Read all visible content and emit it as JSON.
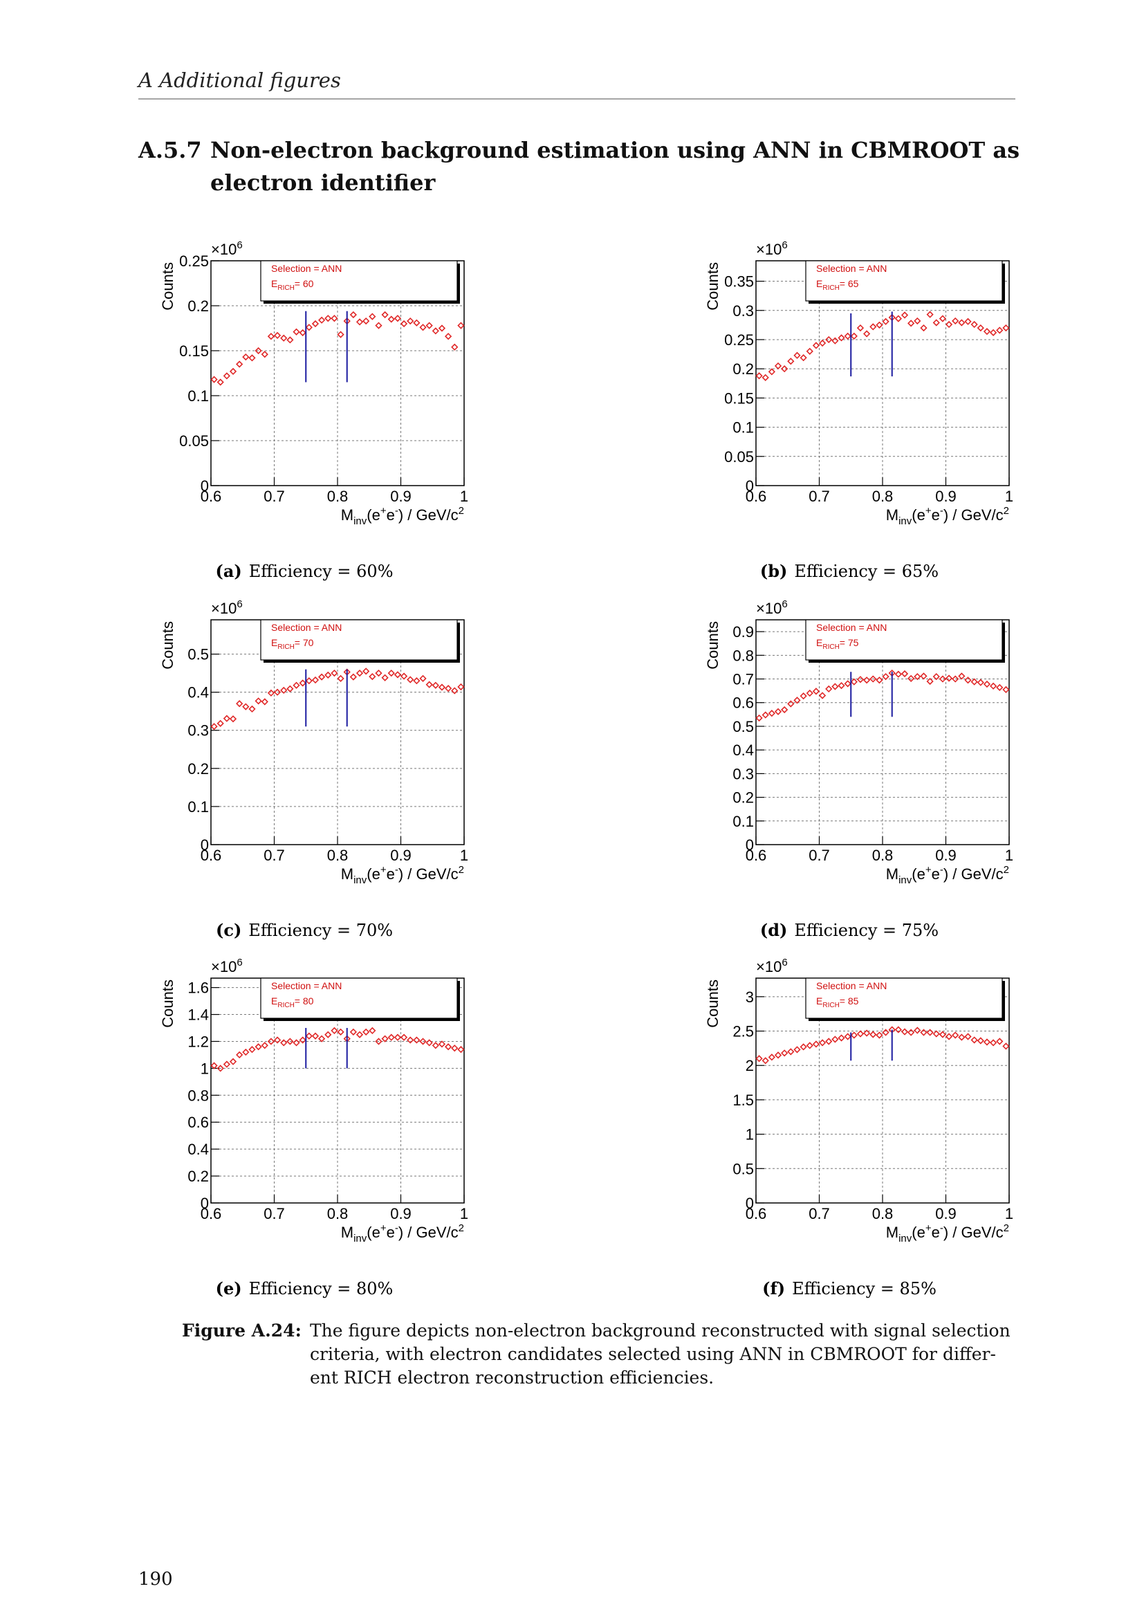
{
  "header": "A Additional figures",
  "section": {
    "number": "A.5.7",
    "lines": [
      "Non-electron background estimation using ANN in CBMROOT as",
      "electron identifier"
    ]
  },
  "chart_data": [
    {
      "type": "scatter",
      "label": "(a)",
      "caption": "Efficiency = 60%",
      "ylabel": "Counts",
      "y_multiplier": {
        "base": "×10",
        "exp": "6"
      },
      "xlabel_parts": [
        {
          "text": "M",
          "shift": "none"
        },
        {
          "text": "inv",
          "shift": "sub"
        },
        {
          "text": "(e",
          "shift": "none"
        },
        {
          "text": "+",
          "shift": "super"
        },
        {
          "text": "e",
          "shift": "none"
        },
        {
          "text": "-",
          "shift": "super"
        },
        {
          "text": ") / GeV/c",
          "shift": "none"
        },
        {
          "text": "2",
          "shift": "super"
        }
      ],
      "legend": {
        "selection": "Selection = ANN",
        "e": "E",
        "e_sub": "RICH",
        "e_value": "= 60"
      },
      "x": [
        0.605,
        0.615,
        0.625,
        0.635,
        0.645,
        0.655,
        0.665,
        0.675,
        0.685,
        0.695,
        0.705,
        0.715,
        0.725,
        0.735,
        0.745,
        0.755,
        0.765,
        0.775,
        0.785,
        0.795,
        0.805,
        0.815,
        0.825,
        0.835,
        0.845,
        0.855,
        0.865,
        0.875,
        0.885,
        0.895,
        0.905,
        0.915,
        0.925,
        0.935,
        0.945,
        0.955,
        0.965,
        0.975,
        0.985,
        0.995
      ],
      "series": [
        {
          "color": "#e02828",
          "values": [
            0.118,
            0.115,
            0.122,
            0.127,
            0.135,
            0.143,
            0.142,
            0.15,
            0.146,
            0.166,
            0.167,
            0.164,
            0.162,
            0.171,
            0.17,
            0.176,
            0.18,
            0.184,
            0.186,
            0.186,
            0.168,
            0.183,
            0.19,
            0.182,
            0.183,
            0.188,
            0.178,
            0.19,
            0.185,
            0.186,
            0.18,
            0.183,
            0.181,
            0.176,
            0.178,
            0.172,
            0.175,
            0.166,
            0.154,
            0.178
          ]
        }
      ],
      "vlines": [
        {
          "x": 0.75,
          "ymin": 0.115,
          "ymax": 0.194
        },
        {
          "x": 0.815,
          "ymin": 0.115,
          "ymax": 0.194
        }
      ],
      "vline_color": "#1c1ca0",
      "xlim": [
        0.6,
        1
      ],
      "xticks": [
        0.6,
        0.7,
        0.8,
        0.9,
        1
      ],
      "ylim": [
        0,
        0.25
      ],
      "yticks": [
        0,
        0.05,
        0.1,
        0.15,
        0.2,
        0.25
      ],
      "grid": true
    },
    {
      "type": "scatter",
      "label": "(b)",
      "caption": "Efficiency = 65%",
      "ylabel": "Counts",
      "y_multiplier": {
        "base": "×10",
        "exp": "6"
      },
      "xlabel_parts": [
        {
          "text": "M",
          "shift": "none"
        },
        {
          "text": "inv",
          "shift": "sub"
        },
        {
          "text": "(e",
          "shift": "none"
        },
        {
          "text": "+",
          "shift": "super"
        },
        {
          "text": "e",
          "shift": "none"
        },
        {
          "text": "-",
          "shift": "super"
        },
        {
          "text": ") / GeV/c",
          "shift": "none"
        },
        {
          "text": "2",
          "shift": "super"
        }
      ],
      "legend": {
        "selection": "Selection = ANN",
        "e": "E",
        "e_sub": "RICH",
        "e_value": "= 65"
      },
      "x": [
        0.605,
        0.615,
        0.625,
        0.635,
        0.645,
        0.655,
        0.665,
        0.675,
        0.685,
        0.695,
        0.705,
        0.715,
        0.725,
        0.735,
        0.745,
        0.755,
        0.765,
        0.775,
        0.785,
        0.795,
        0.805,
        0.815,
        0.825,
        0.835,
        0.845,
        0.855,
        0.865,
        0.875,
        0.885,
        0.895,
        0.905,
        0.915,
        0.925,
        0.935,
        0.945,
        0.955,
        0.965,
        0.975,
        0.985,
        0.995
      ],
      "series": [
        {
          "color": "#e02828",
          "values": [
            0.188,
            0.185,
            0.195,
            0.205,
            0.2,
            0.213,
            0.223,
            0.219,
            0.23,
            0.24,
            0.244,
            0.25,
            0.248,
            0.253,
            0.256,
            0.256,
            0.27,
            0.26,
            0.272,
            0.275,
            0.281,
            0.288,
            0.286,
            0.292,
            0.278,
            0.282,
            0.27,
            0.293,
            0.279,
            0.286,
            0.276,
            0.282,
            0.279,
            0.281,
            0.276,
            0.27,
            0.264,
            0.262,
            0.266,
            0.27
          ]
        }
      ],
      "vlines": [
        {
          "x": 0.75,
          "ymin": 0.187,
          "ymax": 0.295
        },
        {
          "x": 0.815,
          "ymin": 0.187,
          "ymax": 0.298
        }
      ],
      "vline_color": "#1c1ca0",
      "xlim": [
        0.6,
        1
      ],
      "xticks": [
        0.6,
        0.7,
        0.8,
        0.9,
        1
      ],
      "ylim": [
        0,
        0.385
      ],
      "yticks": [
        0,
        0.05,
        0.1,
        0.15,
        0.2,
        0.25,
        0.3,
        0.35
      ],
      "grid": true
    },
    {
      "type": "scatter",
      "label": "(c)",
      "caption": "Efficiency = 70%",
      "ylabel": "Counts",
      "y_multiplier": {
        "base": "×10",
        "exp": "6"
      },
      "xlabel_parts": [
        {
          "text": "M",
          "shift": "none"
        },
        {
          "text": "inv",
          "shift": "sub"
        },
        {
          "text": "(e",
          "shift": "none"
        },
        {
          "text": "+",
          "shift": "super"
        },
        {
          "text": "e",
          "shift": "none"
        },
        {
          "text": "-",
          "shift": "super"
        },
        {
          "text": ") / GeV/c",
          "shift": "none"
        },
        {
          "text": "2",
          "shift": "super"
        }
      ],
      "legend": {
        "selection": "Selection = ANN",
        "e": "E",
        "e_sub": "RICH",
        "e_value": "= 70"
      },
      "x": [
        0.605,
        0.615,
        0.625,
        0.635,
        0.645,
        0.655,
        0.665,
        0.675,
        0.685,
        0.695,
        0.705,
        0.715,
        0.725,
        0.735,
        0.745,
        0.755,
        0.765,
        0.775,
        0.785,
        0.795,
        0.805,
        0.815,
        0.825,
        0.835,
        0.845,
        0.855,
        0.865,
        0.875,
        0.885,
        0.895,
        0.905,
        0.915,
        0.925,
        0.935,
        0.945,
        0.955,
        0.965,
        0.975,
        0.985,
        0.995
      ],
      "series": [
        {
          "color": "#e02828",
          "values": [
            0.31,
            0.318,
            0.331,
            0.33,
            0.37,
            0.362,
            0.356,
            0.377,
            0.375,
            0.398,
            0.4,
            0.405,
            0.409,
            0.418,
            0.424,
            0.43,
            0.432,
            0.44,
            0.445,
            0.45,
            0.436,
            0.453,
            0.44,
            0.45,
            0.455,
            0.441,
            0.45,
            0.438,
            0.45,
            0.446,
            0.442,
            0.433,
            0.43,
            0.436,
            0.42,
            0.418,
            0.413,
            0.41,
            0.404,
            0.414
          ]
        }
      ],
      "vlines": [
        {
          "x": 0.75,
          "ymin": 0.31,
          "ymax": 0.46
        },
        {
          "x": 0.815,
          "ymin": 0.31,
          "ymax": 0.46
        }
      ],
      "vline_color": "#1c1ca0",
      "xlim": [
        0.6,
        1
      ],
      "xticks": [
        0.6,
        0.7,
        0.8,
        0.9,
        1
      ],
      "ylim": [
        0,
        0.59
      ],
      "yticks": [
        0,
        0.1,
        0.2,
        0.3,
        0.4,
        0.5
      ],
      "grid": true
    },
    {
      "type": "scatter",
      "label": "(d)",
      "caption": "Efficiency = 75%",
      "ylabel": "Counts",
      "y_multiplier": {
        "base": "×10",
        "exp": "6"
      },
      "xlabel_parts": [
        {
          "text": "M",
          "shift": "none"
        },
        {
          "text": "inv",
          "shift": "sub"
        },
        {
          "text": "(e",
          "shift": "none"
        },
        {
          "text": "+",
          "shift": "super"
        },
        {
          "text": "e",
          "shift": "none"
        },
        {
          "text": "-",
          "shift": "super"
        },
        {
          "text": ") / GeV/c",
          "shift": "none"
        },
        {
          "text": "2",
          "shift": "super"
        }
      ],
      "legend": {
        "selection": "Selection = ANN",
        "e": "E",
        "e_sub": "RICH",
        "e_value": "= 75"
      },
      "x": [
        0.605,
        0.615,
        0.625,
        0.635,
        0.645,
        0.655,
        0.665,
        0.675,
        0.685,
        0.695,
        0.705,
        0.715,
        0.725,
        0.735,
        0.745,
        0.755,
        0.765,
        0.775,
        0.785,
        0.795,
        0.805,
        0.815,
        0.825,
        0.835,
        0.845,
        0.855,
        0.865,
        0.875,
        0.885,
        0.895,
        0.905,
        0.915,
        0.925,
        0.935,
        0.945,
        0.955,
        0.965,
        0.975,
        0.985,
        0.995
      ],
      "series": [
        {
          "color": "#e02828",
          "values": [
            0.535,
            0.548,
            0.555,
            0.562,
            0.57,
            0.595,
            0.61,
            0.628,
            0.64,
            0.648,
            0.63,
            0.658,
            0.668,
            0.672,
            0.68,
            0.688,
            0.698,
            0.695,
            0.7,
            0.695,
            0.71,
            0.725,
            0.72,
            0.722,
            0.702,
            0.71,
            0.712,
            0.69,
            0.71,
            0.7,
            0.703,
            0.7,
            0.712,
            0.695,
            0.688,
            0.685,
            0.678,
            0.67,
            0.664,
            0.655
          ]
        }
      ],
      "vlines": [
        {
          "x": 0.75,
          "ymin": 0.54,
          "ymax": 0.73
        },
        {
          "x": 0.815,
          "ymin": 0.54,
          "ymax": 0.73
        }
      ],
      "vline_color": "#1c1ca0",
      "xlim": [
        0.6,
        1
      ],
      "xticks": [
        0.6,
        0.7,
        0.8,
        0.9,
        1
      ],
      "ylim": [
        0,
        0.95
      ],
      "yticks": [
        0,
        0.1,
        0.2,
        0.3,
        0.4,
        0.5,
        0.6,
        0.7,
        0.8,
        0.9
      ],
      "grid": true
    },
    {
      "type": "scatter",
      "label": "(e)",
      "caption": "Efficiency = 80%",
      "ylabel": "Counts",
      "y_multiplier": {
        "base": "×10",
        "exp": "6"
      },
      "xlabel_parts": [
        {
          "text": "M",
          "shift": "none"
        },
        {
          "text": "inv",
          "shift": "sub"
        },
        {
          "text": "(e",
          "shift": "none"
        },
        {
          "text": "+",
          "shift": "super"
        },
        {
          "text": "e",
          "shift": "none"
        },
        {
          "text": "-",
          "shift": "super"
        },
        {
          "text": ") / GeV/c",
          "shift": "none"
        },
        {
          "text": "2",
          "shift": "super"
        }
      ],
      "legend": {
        "selection": "Selection = ANN",
        "e": "E",
        "e_sub": "RICH",
        "e_value": "= 80"
      },
      "x": [
        0.605,
        0.615,
        0.625,
        0.635,
        0.645,
        0.655,
        0.665,
        0.675,
        0.685,
        0.695,
        0.705,
        0.715,
        0.725,
        0.735,
        0.745,
        0.755,
        0.765,
        0.775,
        0.785,
        0.795,
        0.805,
        0.815,
        0.825,
        0.835,
        0.845,
        0.855,
        0.865,
        0.875,
        0.885,
        0.895,
        0.905,
        0.915,
        0.925,
        0.935,
        0.945,
        0.955,
        0.965,
        0.975,
        0.985,
        0.995
      ],
      "series": [
        {
          "color": "#e02828",
          "values": [
            1.02,
            1.0,
            1.03,
            1.05,
            1.1,
            1.12,
            1.14,
            1.16,
            1.17,
            1.2,
            1.21,
            1.19,
            1.2,
            1.19,
            1.21,
            1.24,
            1.24,
            1.22,
            1.25,
            1.28,
            1.27,
            1.22,
            1.27,
            1.25,
            1.27,
            1.28,
            1.2,
            1.22,
            1.23,
            1.23,
            1.23,
            1.21,
            1.21,
            1.2,
            1.19,
            1.17,
            1.18,
            1.16,
            1.15,
            1.14
          ]
        }
      ],
      "vlines": [
        {
          "x": 0.75,
          "ymin": 1.0,
          "ymax": 1.3
        },
        {
          "x": 0.815,
          "ymin": 1.0,
          "ymax": 1.3
        }
      ],
      "vline_color": "#1c1ca0",
      "xlim": [
        0.6,
        1
      ],
      "xticks": [
        0.6,
        0.7,
        0.8,
        0.9,
        1
      ],
      "ylim": [
        0,
        1.67
      ],
      "yticks": [
        0,
        0.2,
        0.4,
        0.6,
        0.8,
        1,
        1.2,
        1.4,
        1.6
      ],
      "grid": true
    },
    {
      "type": "scatter",
      "label": "(f)",
      "caption": "Efficiency = 85%",
      "ylabel": "Counts",
      "y_multiplier": {
        "base": "×10",
        "exp": "6"
      },
      "xlabel_parts": [
        {
          "text": "M",
          "shift": "none"
        },
        {
          "text": "inv",
          "shift": "sub"
        },
        {
          "text": "(e",
          "shift": "none"
        },
        {
          "text": "+",
          "shift": "super"
        },
        {
          "text": "e",
          "shift": "none"
        },
        {
          "text": "-",
          "shift": "super"
        },
        {
          "text": ") / GeV/c",
          "shift": "none"
        },
        {
          "text": "2",
          "shift": "super"
        }
      ],
      "legend": {
        "selection": "Selection = ANN",
        "e": "E",
        "e_sub": "RICH",
        "e_value": "= 85"
      },
      "x": [
        0.605,
        0.615,
        0.625,
        0.635,
        0.645,
        0.655,
        0.665,
        0.675,
        0.685,
        0.695,
        0.705,
        0.715,
        0.725,
        0.735,
        0.745,
        0.755,
        0.765,
        0.775,
        0.785,
        0.795,
        0.805,
        0.815,
        0.825,
        0.835,
        0.845,
        0.855,
        0.865,
        0.875,
        0.885,
        0.895,
        0.905,
        0.915,
        0.925,
        0.935,
        0.945,
        0.955,
        0.965,
        0.975,
        0.985,
        0.995
      ],
      "series": [
        {
          "color": "#e02828",
          "values": [
            2.1,
            2.07,
            2.12,
            2.15,
            2.18,
            2.2,
            2.23,
            2.27,
            2.29,
            2.31,
            2.33,
            2.35,
            2.38,
            2.4,
            2.42,
            2.44,
            2.46,
            2.47,
            2.45,
            2.44,
            2.48,
            2.52,
            2.52,
            2.49,
            2.48,
            2.51,
            2.48,
            2.48,
            2.46,
            2.45,
            2.42,
            2.44,
            2.41,
            2.42,
            2.37,
            2.36,
            2.34,
            2.33,
            2.35,
            2.28
          ]
        }
      ],
      "vlines": [
        {
          "x": 0.75,
          "ymin": 2.07,
          "ymax": 2.48
        },
        {
          "x": 0.815,
          "ymin": 2.07,
          "ymax": 2.52
        }
      ],
      "vline_color": "#1c1ca0",
      "xlim": [
        0.6,
        1
      ],
      "xticks": [
        0.6,
        0.7,
        0.8,
        0.9,
        1
      ],
      "ylim": [
        0,
        3.27
      ],
      "yticks": [
        0,
        0.5,
        1,
        1.5,
        2,
        2.5,
        3
      ],
      "grid": true
    }
  ],
  "caption": {
    "label": "Figure A.24:",
    "lines": [
      "The figure depicts non-electron background reconstructed with signal selection",
      "criteria, with electron candidates selected using ANN in CBMROOT for differ-",
      "ent RICH electron reconstruction efficiencies."
    ]
  },
  "page_number": "190"
}
